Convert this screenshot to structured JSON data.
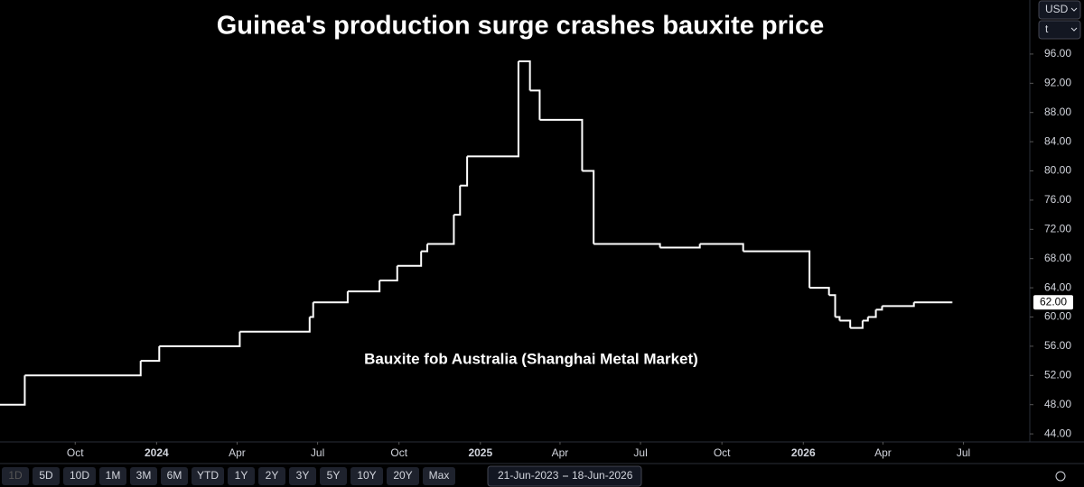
{
  "chart_data": {
    "type": "step-line",
    "title": "Guinea's production surge crashes bauxite price",
    "annotation": "Bauxite fob Australia (Shanghai Metal Market)",
    "color": "#ffffff",
    "x": [
      "2023-07-08",
      "2023-08-05",
      "2023-12-14",
      "2024-01-04",
      "2024-04-04",
      "2024-06-22",
      "2024-06-26",
      "2024-08-04",
      "2024-09-09",
      "2024-09-29",
      "2024-10-26",
      "2024-11-02",
      "2024-12-02",
      "2024-12-09",
      "2024-12-17",
      "2025-02-13",
      "2025-02-26",
      "2025-03-09",
      "2025-04-26",
      "2025-05-09",
      "2025-07-23",
      "2025-09-06",
      "2025-10-25",
      "2026-01-08",
      "2026-01-30",
      "2026-02-06",
      "2026-02-11",
      "2026-02-23",
      "2026-03-09",
      "2026-03-15",
      "2026-03-24",
      "2026-03-31",
      "2026-05-06",
      "2026-06-18"
    ],
    "values": [
      48,
      52,
      54,
      56,
      58,
      60,
      62,
      63.5,
      65,
      67,
      69,
      70,
      74,
      78,
      82,
      95,
      91,
      87,
      80,
      70,
      69.5,
      70,
      69,
      64,
      63,
      60,
      59.5,
      58.5,
      59.5,
      60,
      61,
      61.5,
      62,
      62
    ],
    "xlim": [
      "2023-07-08",
      "2026-09-14"
    ],
    "xticks": [
      {
        "value": "2023-07-01",
        "label": "Jul"
      },
      {
        "value": "2023-10-01",
        "label": "Oct"
      },
      {
        "value": "2024-01-01",
        "label": "2024"
      },
      {
        "value": "2024-04-01",
        "label": "Apr"
      },
      {
        "value": "2024-07-01",
        "label": "Jul"
      },
      {
        "value": "2024-10-01",
        "label": "Oct"
      },
      {
        "value": "2025-01-01",
        "label": "2025"
      },
      {
        "value": "2025-04-01",
        "label": "Apr"
      },
      {
        "value": "2025-07-01",
        "label": "Jul"
      },
      {
        "value": "2025-10-01",
        "label": "Oct"
      },
      {
        "value": "2026-01-01",
        "label": "2026"
      },
      {
        "value": "2026-04-01",
        "label": "Apr"
      },
      {
        "value": "2026-07-01",
        "label": "Jul"
      }
    ],
    "ylim": [
      42.9,
      103.4
    ],
    "yticks": [
      {
        "value": 44,
        "label": "44.00"
      },
      {
        "value": 48,
        "label": "48.00"
      },
      {
        "value": 52,
        "label": "52.00"
      },
      {
        "value": 56,
        "label": "56.00"
      },
      {
        "value": 60,
        "label": "60.00"
      },
      {
        "value": 64,
        "label": "64.00"
      },
      {
        "value": 68,
        "label": "68.00"
      },
      {
        "value": 72,
        "label": "72.00"
      },
      {
        "value": 76,
        "label": "76.00"
      },
      {
        "value": 80,
        "label": "80.00"
      },
      {
        "value": 84,
        "label": "84.00"
      },
      {
        "value": 88,
        "label": "88.00"
      },
      {
        "value": 92,
        "label": "92.00"
      },
      {
        "value": 96,
        "label": "96.00"
      }
    ],
    "last_price": {
      "value": 62,
      "label": "62.00"
    },
    "grid": false
  },
  "controls": {
    "currency": "USD",
    "unit": "t",
    "ranges": [
      "1D",
      "5D",
      "10D",
      "1M",
      "3M",
      "6M",
      "YTD",
      "1Y",
      "2Y",
      "3Y",
      "5Y",
      "10Y",
      "20Y",
      "Max"
    ],
    "date_from": "21-Jun-2023",
    "date_to": "18-Jun-2026"
  }
}
